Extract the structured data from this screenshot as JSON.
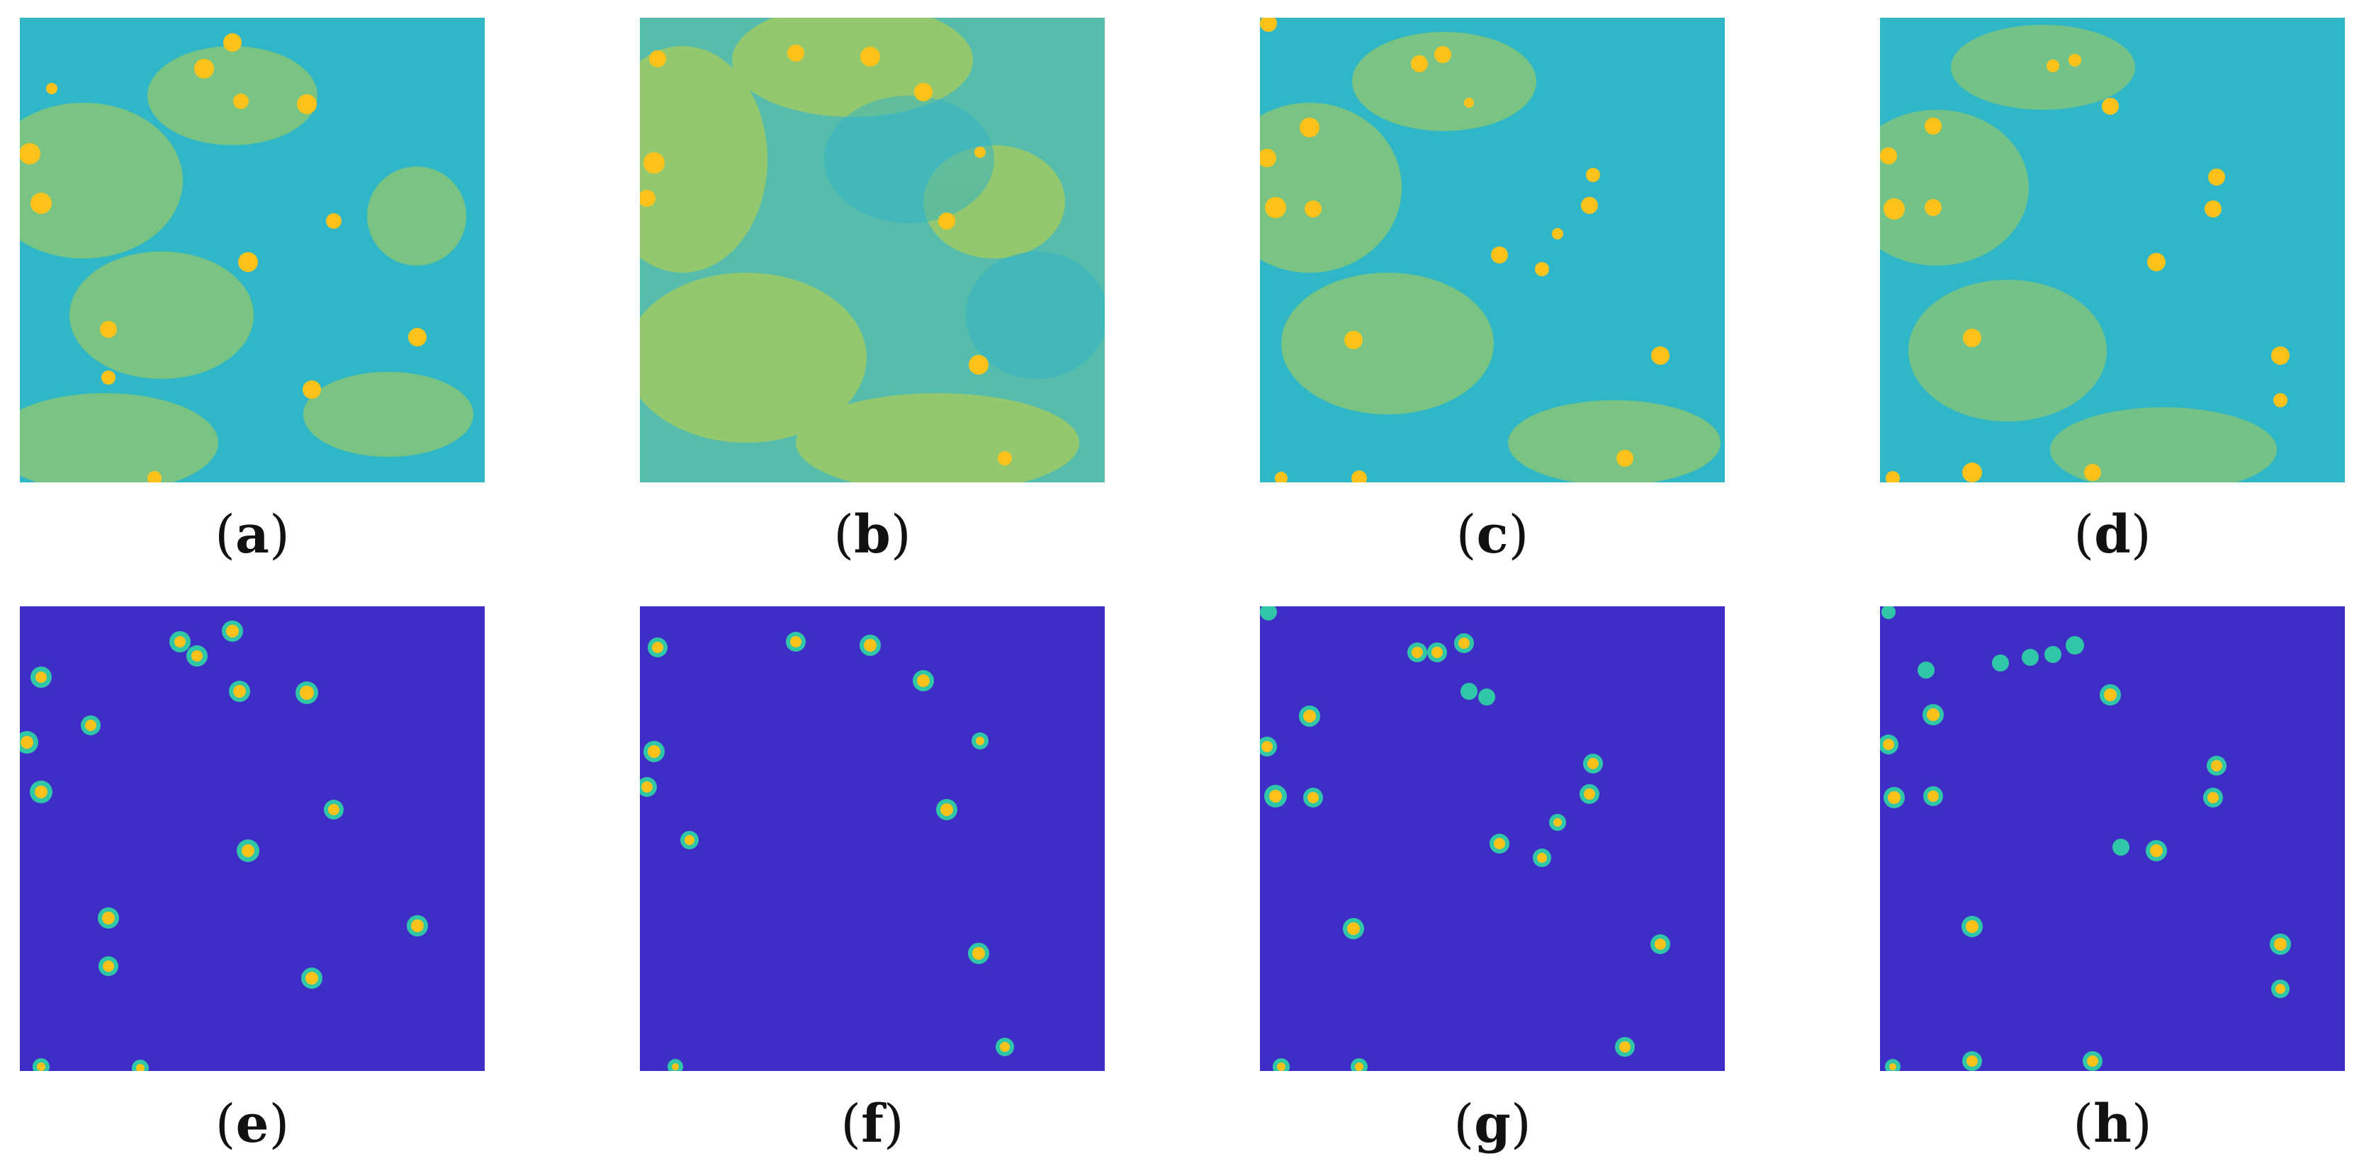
{
  "panels": [
    {
      "label": "a",
      "caption_open": "(",
      "caption_close": ")",
      "row": "noisy"
    },
    {
      "label": "b",
      "caption_open": "(",
      "caption_close": ")",
      "row": "noisy"
    },
    {
      "label": "c",
      "caption_open": "(",
      "caption_close": ")",
      "row": "noisy"
    },
    {
      "label": "d",
      "caption_open": "(",
      "caption_close": ")",
      "row": "noisy"
    },
    {
      "label": "e",
      "caption_open": "(",
      "caption_close": ")",
      "row": "denoised"
    },
    {
      "label": "f",
      "caption_open": "(",
      "caption_close": ")",
      "row": "denoised"
    },
    {
      "label": "g",
      "caption_open": "(",
      "caption_close": ")",
      "row": "denoised"
    },
    {
      "label": "h",
      "caption_open": "(",
      "caption_close": ")",
      "row": "denoised"
    }
  ],
  "colors": {
    "noisy_background": "#2bb3c9",
    "noisy_blob": "#b9d14a",
    "spot_core": "#ffc21a",
    "spot_edge": "#7fd27a",
    "denoised_background": "#3f2fc7",
    "denoised_ring": "#30c7a8"
  }
}
